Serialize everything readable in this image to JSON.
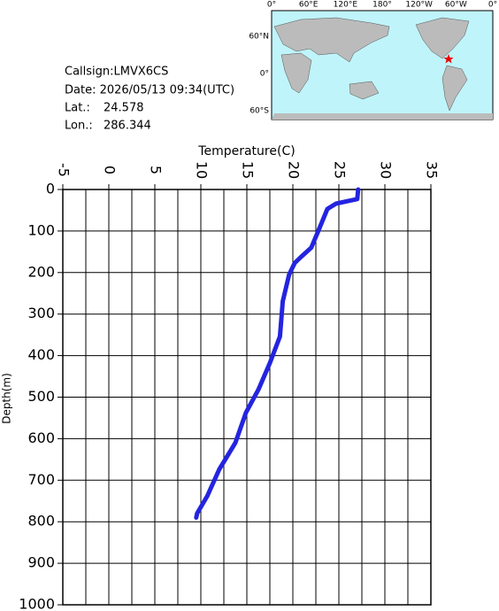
{
  "station": {
    "callsign": "Callsign:LMVX6CS",
    "date": "Date:  2026/05/13 09:34(UTC)",
    "lat_label": "Lat.:",
    "lat": "24.578",
    "lon_label": "Lon.:",
    "lon": "286.344"
  },
  "map": {
    "top_labels": [
      "0°",
      "60°E",
      "120°E",
      "180°",
      "120°W",
      "60°W",
      "0°"
    ],
    "left_labels": [
      "60°N",
      "0°",
      "60°S"
    ]
  },
  "chart_data": {
    "type": "line",
    "x_label": "Temperature(C)",
    "y_label": "Depth(m)",
    "x": [
      27.1,
      27.0,
      24.7,
      23.75,
      22.8,
      22.0,
      20.9,
      20.2,
      19.6,
      18.9,
      18.6,
      17.5,
      16.25,
      14.9,
      13.75,
      12.0,
      10.7,
      9.6,
      9.5
    ],
    "values": [
      0,
      23,
      34,
      47,
      98,
      140,
      162,
      177,
      205,
      269,
      354,
      418,
      482,
      537,
      610,
      674,
      738,
      780,
      790
    ],
    "color": "#2424e0",
    "xlim": [
      -5,
      35
    ],
    "xticks": [
      -5,
      0,
      5,
      10,
      15,
      20,
      25,
      30,
      35
    ],
    "x_grid": [
      -5,
      -2.5,
      0,
      2.5,
      5,
      7.5,
      10,
      12.5,
      15,
      17.5,
      20,
      22.5,
      25,
      27.5,
      30,
      32.5,
      35
    ],
    "ylim": [
      0,
      1000
    ],
    "yticks": [
      0,
      100,
      200,
      300,
      400,
      500,
      600,
      700,
      800,
      900,
      1000
    ],
    "y_inverted": true,
    "x_axis_position": "top",
    "grid": true
  }
}
